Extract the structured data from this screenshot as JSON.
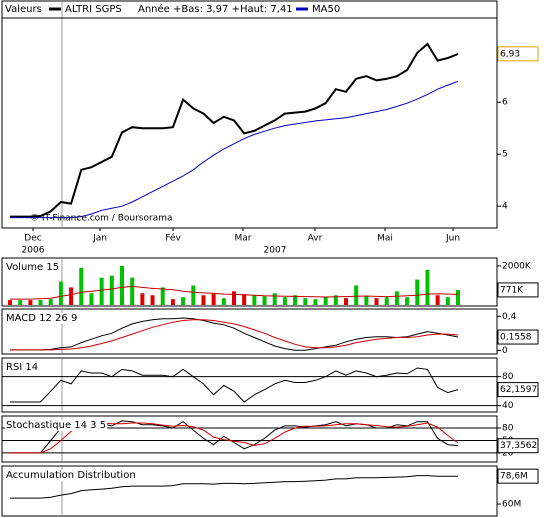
{
  "chart_data": [
    {
      "type": "line",
      "legend_title": "Valeurs",
      "annotation": "Année +Bas: 3,97 +Haut: 7,41",
      "copyright": "© IT-Finance.com / Boursorama",
      "x_labels": [
        "Dec",
        "Jan",
        "Fév",
        "Mar",
        "Avr",
        "Mai",
        "Jun"
      ],
      "years": [
        "2006",
        "2007"
      ],
      "ylim": [
        3.58,
        7.62
      ],
      "yticks": [
        4,
        5,
        6
      ],
      "grid": false,
      "current": {
        "value": 6.93,
        "label": "6,93"
      },
      "series": [
        {
          "name": "ALTRI SGPS",
          "color": "#000000",
          "width": 2,
          "values": [
            3.8,
            3.8,
            3.8,
            3.81,
            3.9,
            4.08,
            4.05,
            4.7,
            4.75,
            4.85,
            4.95,
            5.42,
            5.52,
            5.5,
            5.5,
            5.5,
            5.52,
            6.05,
            5.88,
            5.78,
            5.6,
            5.72,
            5.65,
            5.4,
            5.45,
            5.55,
            5.65,
            5.78,
            5.8,
            5.82,
            5.88,
            5.98,
            6.25,
            6.2,
            6.45,
            6.5,
            6.42,
            6.45,
            6.5,
            6.62,
            6.95,
            7.12,
            6.8,
            6.85,
            6.93
          ]
        },
        {
          "name": "MA50",
          "color": "#0000c0",
          "width": 1,
          "values": [
            3.78,
            3.78,
            3.78,
            3.78,
            3.78,
            3.78,
            3.78,
            3.8,
            3.85,
            3.92,
            3.96,
            4.0,
            4.08,
            4.18,
            4.28,
            4.38,
            4.48,
            4.58,
            4.7,
            4.85,
            4.98,
            5.1,
            5.2,
            5.3,
            5.38,
            5.44,
            5.5,
            5.55,
            5.58,
            5.61,
            5.64,
            5.66,
            5.68,
            5.7,
            5.74,
            5.78,
            5.82,
            5.86,
            5.92,
            5.98,
            6.06,
            6.15,
            6.25,
            6.33,
            6.4
          ]
        }
      ]
    },
    {
      "type": "bar",
      "title": "Volume 15",
      "ylim": [
        0,
        2200
      ],
      "yticks": [
        {
          "value": 2000,
          "label": "2000K"
        }
      ],
      "grid": false,
      "current": {
        "value": 771,
        "label": "771K"
      },
      "values": [
        250,
        250,
        250,
        250,
        300,
        1200,
        900,
        1900,
        600,
        1400,
        1500,
        2000,
        1400,
        600,
        500,
        900,
        300,
        400,
        1000,
        500,
        600,
        350,
        700,
        550,
        500,
        450,
        600,
        400,
        500,
        350,
        300,
        400,
        500,
        350,
        1000,
        450,
        350,
        400,
        700,
        400,
        1300,
        1800,
        500,
        400,
        771
      ],
      "bar_colors": [
        "#e00000",
        "#00c000",
        "#e00000",
        "#00c000",
        "#00c000",
        "#00c000",
        "#e00000",
        "#00c000",
        "#00c000",
        "#00c000",
        "#00c000",
        "#00c000",
        "#00c000",
        "#e00000",
        "#e00000",
        "#00c000",
        "#e00000",
        "#00c000",
        "#00c000",
        "#e00000",
        "#e00000",
        "#00c000",
        "#e00000",
        "#e00000",
        "#00c000",
        "#00c000",
        "#00c000",
        "#00c000",
        "#00c000",
        "#00c000",
        "#00c000",
        "#00c000",
        "#00c000",
        "#e00000",
        "#00c000",
        "#00c000",
        "#e00000",
        "#00c000",
        "#00c000",
        "#00c000",
        "#00c000",
        "#00c000",
        "#e00000",
        "#00c000",
        "#00c000"
      ],
      "line": {
        "color": "#c00000",
        "values": [
          300,
          300,
          300,
          320,
          350,
          450,
          520,
          650,
          700,
          760,
          820,
          900,
          950,
          900,
          850,
          820,
          780,
          700,
          650,
          620,
          600,
          560,
          540,
          520,
          500,
          470,
          460,
          450,
          440,
          430,
          420,
          410,
          420,
          430,
          450,
          460,
          440,
          430,
          450,
          470,
          500,
          560,
          580,
          560,
          540
        ]
      }
    },
    {
      "type": "line",
      "title": "MACD 12 26 9",
      "ylim": [
        -0.02,
        0.45
      ],
      "yticks": [
        {
          "value": 0.4,
          "label": "0,4"
        },
        0
      ],
      "grid": false,
      "current": {
        "value": 0.1558,
        "label": "0,1558"
      },
      "series": [
        {
          "color": "#000000",
          "width": 1,
          "values": [
            0.005,
            0.005,
            0.005,
            0.005,
            0.01,
            0.03,
            0.04,
            0.09,
            0.13,
            0.17,
            0.2,
            0.26,
            0.31,
            0.34,
            0.36,
            0.37,
            0.37,
            0.38,
            0.37,
            0.35,
            0.32,
            0.3,
            0.26,
            0.2,
            0.15,
            0.1,
            0.05,
            0.02,
            0,
            0,
            0.02,
            0.04,
            0.06,
            0.1,
            0.13,
            0.15,
            0.16,
            0.16,
            0.15,
            0.16,
            0.19,
            0.22,
            0.2,
            0.18,
            0.1558
          ]
        },
        {
          "color": "#d00000",
          "width": 1,
          "values": [
            0.005,
            0.005,
            0.005,
            0.005,
            0.005,
            0.01,
            0.015,
            0.03,
            0.05,
            0.08,
            0.11,
            0.15,
            0.19,
            0.23,
            0.27,
            0.3,
            0.33,
            0.35,
            0.36,
            0.36,
            0.35,
            0.33,
            0.31,
            0.28,
            0.24,
            0.2,
            0.15,
            0.11,
            0.07,
            0.04,
            0.03,
            0.03,
            0.04,
            0.06,
            0.09,
            0.11,
            0.13,
            0.14,
            0.15,
            0.15,
            0.16,
            0.18,
            0.19,
            0.19,
            0.18
          ]
        }
      ]
    },
    {
      "type": "line",
      "title": "RSI 14",
      "ylim": [
        34,
        103
      ],
      "yticks": [
        80,
        40
      ],
      "grid": true,
      "current": {
        "value": 62.1597,
        "label": "62,1597"
      },
      "series": [
        {
          "color": "#000000",
          "width": 1,
          "values": [
            45,
            45,
            45,
            45,
            60,
            75,
            70,
            88,
            85,
            85,
            80,
            90,
            88,
            82,
            82,
            82,
            80,
            90,
            80,
            70,
            55,
            68,
            60,
            45,
            55,
            62,
            70,
            75,
            72,
            72,
            75,
            80,
            88,
            82,
            88,
            85,
            80,
            82,
            85,
            84,
            92,
            90,
            65,
            58,
            62.1597
          ]
        }
      ]
    },
    {
      "type": "line",
      "title": "Stochastique 14 3 5",
      "ylim": [
        3,
        104
      ],
      "yticks": [
        80,
        50,
        20
      ],
      "grid": true,
      "current": {
        "value": 37.3562,
        "label": "37,3562"
      },
      "series": [
        {
          "color": "#000000",
          "width": 1,
          "values": [
            20,
            20,
            20,
            20,
            50,
            80,
            85,
            95,
            92,
            90,
            85,
            97,
            95,
            88,
            88,
            85,
            80,
            95,
            75,
            55,
            40,
            60,
            45,
            30,
            40,
            55,
            75,
            85,
            85,
            82,
            85,
            88,
            95,
            85,
            90,
            88,
            80,
            80,
            88,
            85,
            95,
            95,
            55,
            40,
            37.3562
          ]
        },
        {
          "color": "#d00000",
          "width": 1,
          "values": [
            20,
            20,
            20,
            20,
            30,
            50,
            72,
            85,
            90,
            92,
            90,
            90,
            92,
            92,
            90,
            87,
            84,
            86,
            83,
            75,
            58,
            52,
            48,
            45,
            38,
            42,
            55,
            70,
            80,
            84,
            84,
            85,
            88,
            90,
            90,
            88,
            86,
            83,
            82,
            84,
            88,
            92,
            82,
            62,
            44
          ]
        }
      ]
    },
    {
      "type": "line",
      "title": "Accumulation Distribution",
      "ylim": [
        52.7,
        84.7
      ],
      "yticks": [
        {
          "value": 60,
          "label": "60M"
        }
      ],
      "grid": false,
      "current": {
        "value": 78.6,
        "label": "78,6M"
      },
      "series": [
        {
          "color": "#000000",
          "width": 1,
          "values": [
            64,
            64,
            64,
            64,
            64.5,
            66,
            67,
            69,
            69.5,
            70,
            70.5,
            71.5,
            72,
            72,
            72,
            72,
            72.3,
            73.5,
            73.5,
            73.5,
            73.3,
            73.8,
            73.8,
            73.6,
            73.8,
            74.2,
            74.6,
            75,
            75,
            75.2,
            75.5,
            76,
            76.8,
            76.8,
            77.5,
            77.6,
            77.6,
            77.8,
            78,
            78.2,
            79,
            79,
            78.6,
            78.6,
            78.6
          ]
        }
      ]
    }
  ]
}
